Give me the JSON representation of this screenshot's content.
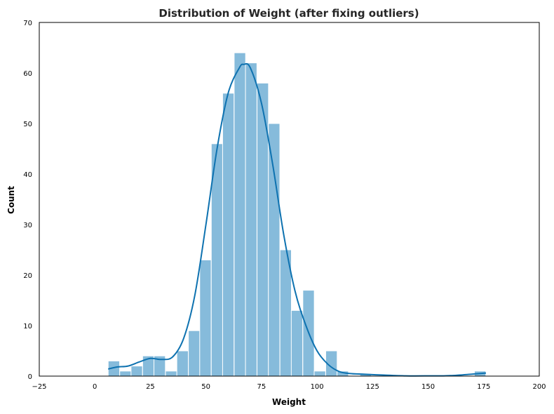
{
  "chart_data": {
    "type": "bar",
    "title": "Distribution of Weight (after fixing outliers)",
    "xlabel": "Weight",
    "ylabel": "Count",
    "xlim": [
      -25,
      200
    ],
    "ylim": [
      0,
      70
    ],
    "x_ticks": [
      -25,
      0,
      25,
      50,
      75,
      100,
      125,
      150,
      175,
      200
    ],
    "y_ticks": [
      0,
      10,
      20,
      30,
      40,
      50,
      60,
      70
    ],
    "grid": false,
    "bin_width": 5.15,
    "bins": [
      {
        "start": 6.0,
        "count": 3
      },
      {
        "start": 11.2,
        "count": 1
      },
      {
        "start": 16.3,
        "count": 2
      },
      {
        "start": 21.5,
        "count": 4
      },
      {
        "start": 26.6,
        "count": 4
      },
      {
        "start": 31.8,
        "count": 1
      },
      {
        "start": 36.9,
        "count": 5
      },
      {
        "start": 42.1,
        "count": 9
      },
      {
        "start": 47.2,
        "count": 23
      },
      {
        "start": 52.4,
        "count": 46
      },
      {
        "start": 57.5,
        "count": 56
      },
      {
        "start": 62.7,
        "count": 64
      },
      {
        "start": 67.8,
        "count": 62
      },
      {
        "start": 73.0,
        "count": 58
      },
      {
        "start": 78.1,
        "count": 50
      },
      {
        "start": 83.3,
        "count": 25
      },
      {
        "start": 88.4,
        "count": 13
      },
      {
        "start": 93.6,
        "count": 17
      },
      {
        "start": 98.7,
        "count": 1
      },
      {
        "start": 103.9,
        "count": 5
      },
      {
        "start": 109.0,
        "count": 1
      },
      {
        "start": 119.3,
        "count": 0.5
      },
      {
        "start": 170.8,
        "count": 1
      }
    ],
    "kde": {
      "x": [
        6,
        10,
        15,
        20,
        25,
        30,
        35,
        40,
        45,
        50,
        55,
        60,
        65,
        67,
        70,
        75,
        80,
        85,
        90,
        95,
        100,
        105,
        110,
        115,
        120,
        130,
        140,
        150,
        160,
        170,
        176
      ],
      "y": [
        1.4,
        1.8,
        2.0,
        2.8,
        3.5,
        3.3,
        3.8,
        7.5,
        16,
        30,
        45,
        56,
        61,
        61.7,
        61,
        54,
        42,
        28,
        17,
        10,
        5,
        2.3,
        0.9,
        0.5,
        0.4,
        0.2,
        0.05,
        0.05,
        0.1,
        0.4,
        0.6
      ]
    },
    "bar_color": "#86bbdb",
    "line_color": "#0e72b0"
  }
}
